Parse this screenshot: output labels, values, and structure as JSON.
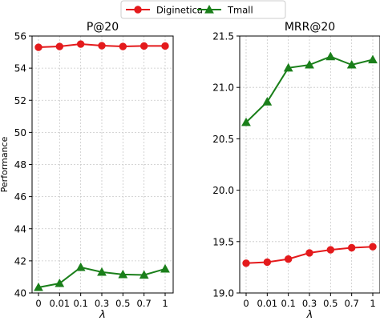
{
  "legend": {
    "entries": [
      {
        "label": "Diginetica",
        "color": "#e41a1c",
        "marker": "circle"
      },
      {
        "label": "Tmall",
        "color": "#1a7f1a",
        "marker": "triangle"
      }
    ],
    "placement": "top-center"
  },
  "chart_data": [
    {
      "type": "line",
      "title": "P@20",
      "xlabel": "λ",
      "ylabel": "Performance",
      "categories": [
        "0",
        "0.01",
        "0.1",
        "0.3",
        "0.5",
        "0.7",
        "1"
      ],
      "ylim": [
        40,
        56
      ],
      "yticks": [
        40,
        42,
        44,
        46,
        48,
        50,
        52,
        54,
        56
      ],
      "ytick_labels": [
        "40",
        "42",
        "44",
        "46",
        "48",
        "50",
        "52",
        "54",
        "56"
      ],
      "grid": true,
      "series": [
        {
          "name": "Diginetica",
          "color": "#e41a1c",
          "marker": "circle",
          "values": [
            55.3,
            55.35,
            55.5,
            55.4,
            55.35,
            55.38,
            55.38
          ]
        },
        {
          "name": "Tmall",
          "color": "#1a7f1a",
          "marker": "triangle",
          "values": [
            40.35,
            40.6,
            41.6,
            41.3,
            41.15,
            41.12,
            41.5
          ]
        }
      ]
    },
    {
      "type": "line",
      "title": "MRR@20",
      "xlabel": "λ",
      "ylabel": "",
      "categories": [
        "0",
        "0.01",
        "0.1",
        "0.3",
        "0.5",
        "0.7",
        "1"
      ],
      "ylim": [
        19.0,
        21.5
      ],
      "yticks": [
        19.0,
        19.5,
        20.0,
        20.5,
        21.0,
        21.5
      ],
      "ytick_labels": [
        "19.0",
        "19.5",
        "20.0",
        "20.5",
        "21.0",
        "21.5"
      ],
      "grid": true,
      "series": [
        {
          "name": "Diginetica",
          "color": "#e41a1c",
          "marker": "circle",
          "values": [
            19.29,
            19.3,
            19.33,
            19.39,
            19.42,
            19.44,
            19.45
          ]
        },
        {
          "name": "Tmall",
          "color": "#1a7f1a",
          "marker": "triangle",
          "values": [
            20.66,
            20.86,
            21.19,
            21.22,
            21.3,
            21.22,
            21.27
          ]
        }
      ]
    }
  ]
}
